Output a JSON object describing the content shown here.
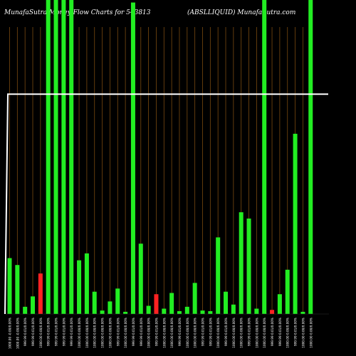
{
  "chart_data": {
    "type": "bar",
    "title_left": "MunafaSutra  Money Flow  Charts for 543813",
    "title_right": "(ABSLLIQUID) MunafaSutra.com",
    "colors": {
      "background": "#000000",
      "up": "#22ee22",
      "down": "#ff2222",
      "line": "#ffffff",
      "grid": "#7a4a10"
    },
    "ylim": [
      0,
      100
    ],
    "line_level": 70,
    "bars": [
      {
        "label": "1000.00 -0.00/0.00%",
        "value": 17.8,
        "color": "up"
      },
      {
        "label": "1000.00 -0.00/0.00%",
        "value": 15.6,
        "color": "up"
      },
      {
        "label": "999.99 0.01/0.00%",
        "value": 2.3,
        "color": "up"
      },
      {
        "label": "999.99 0.01/0.00%",
        "value": 5.6,
        "color": "up"
      },
      {
        "label": "1000.00 0.00/0.00%",
        "value": 12.9,
        "color": "down"
      },
      {
        "label": "999.99 0.01/0.00%",
        "value": 100,
        "color": "up"
      },
      {
        "label": "999.99 0.01/0.00%",
        "value": 100,
        "color": "up"
      },
      {
        "label": "999.99 0.01/0.00%",
        "value": 100,
        "color": "up"
      },
      {
        "label": "999.99 0.01/0.00%",
        "value": 100,
        "color": "up"
      },
      {
        "label": "1000.00 0.00/0.00%",
        "value": 17.1,
        "color": "up"
      },
      {
        "label": "1000.00 0.00/0.00%",
        "value": 19.3,
        "color": "up"
      },
      {
        "label": "1000.00 0.00/0.00%",
        "value": 7.1,
        "color": "up"
      },
      {
        "label": "1000.00 0.00/0.00%",
        "value": 1.1,
        "color": "up"
      },
      {
        "label": "1000.00 0.00/0.00%",
        "value": 4.0,
        "color": "up"
      },
      {
        "label": "999.99 0.01/0.00%",
        "value": 8.1,
        "color": "up"
      },
      {
        "label": "1000.00 0.00/0.00%",
        "value": 0.7,
        "color": "up"
      },
      {
        "label": "999.99 0.01/0.00%",
        "value": 99.2,
        "color": "up"
      },
      {
        "label": "999.99 0.01/0.00%",
        "value": 22.4,
        "color": "up"
      },
      {
        "label": "1000.00 0.00/0.00%",
        "value": 2.6,
        "color": "up"
      },
      {
        "label": "999.99 0.01/0.00%",
        "value": 6.3,
        "color": "down"
      },
      {
        "label": "1000.00 0.00/0.00%",
        "value": 1.7,
        "color": "up"
      },
      {
        "label": "1000.00 0.00/0.00%",
        "value": 6.7,
        "color": "up"
      },
      {
        "label": "999.99 0.01/0.00%",
        "value": 0.9,
        "color": "up"
      },
      {
        "label": "1000.00 0.00/0.00%",
        "value": 2.3,
        "color": "up"
      },
      {
        "label": "1000.00 0.00/0.00%",
        "value": 9.9,
        "color": "up"
      },
      {
        "label": "999.99 0.01/0.00%",
        "value": 1.1,
        "color": "up"
      },
      {
        "label": "999.99 0.01/0.00%",
        "value": 0.9,
        "color": "up"
      },
      {
        "label": "1000.00 0.00/0.00%",
        "value": 24.4,
        "color": "up"
      },
      {
        "label": "999.99 0.01/0.00%",
        "value": 7.1,
        "color": "up"
      },
      {
        "label": "1000.00 0.00/0.00%",
        "value": 3.0,
        "color": "up"
      },
      {
        "label": "1000.00 0.00/0.00%",
        "value": 32.4,
        "color": "up"
      },
      {
        "label": "999.99 0.01/0.00%",
        "value": 30.4,
        "color": "up"
      },
      {
        "label": "1000.00 0.00/0.00%",
        "value": 1.7,
        "color": "up"
      },
      {
        "label": "1000.00 0.00/0.00%",
        "value": 100,
        "color": "up"
      },
      {
        "label": "999.99 0.01/0.00%",
        "value": 1.3,
        "color": "down"
      },
      {
        "label": "999.99 0.01/0.00%",
        "value": 6.3,
        "color": "up"
      },
      {
        "label": "1000.00 0.00/0.00%",
        "value": 14.1,
        "color": "up"
      },
      {
        "label": "999.99 0.01/0.00%",
        "value": 57.4,
        "color": "up"
      },
      {
        "label": "1000.00 0.00/0.00%",
        "value": 0.7,
        "color": "up"
      },
      {
        "label": "1000.00 0.00/0.00%",
        "value": 100,
        "color": "up"
      }
    ]
  }
}
